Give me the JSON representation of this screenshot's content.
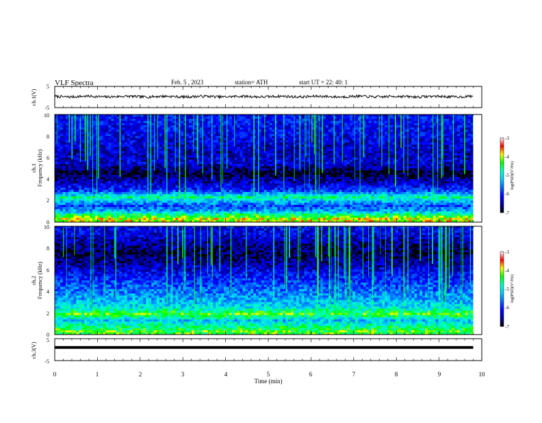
{
  "header": {
    "title": "VLF Spectra",
    "date": "Feb. 5 , 2023",
    "station": "station= ATH",
    "start": "start UT = 22: 40: 1"
  },
  "chart_data": [
    {
      "type": "line",
      "name": "ch1-waveform",
      "ylabel": "ch.1(V)",
      "yticks": [
        "5",
        "-5"
      ],
      "ylim": [
        -5,
        5
      ],
      "xlim": [
        0,
        10
      ],
      "approx_level": 0.2,
      "noise_amplitude": 0.6,
      "data_extent_min": 9.8
    },
    {
      "type": "heatmap",
      "name": "ch1-spectrogram",
      "ylabel": "Frequency (kHz)",
      "channel_label": "ch.1",
      "yticks": [
        "0",
        "2",
        "4",
        "6",
        "8",
        "10"
      ],
      "ylim": [
        0,
        10
      ],
      "xlim": [
        0,
        10
      ],
      "colorbar": {
        "label": "log(PSD)(V²/Hz)",
        "ticks": [
          "-3",
          "-4",
          "-5",
          "-6",
          "-7"
        ],
        "range": [
          -7,
          -3
        ]
      },
      "bands": [
        {
          "f": 0.3,
          "level": -4.0
        },
        {
          "f": 0.7,
          "level": -4.6
        },
        {
          "f": 1.0,
          "level": -5.3
        },
        {
          "f": 1.5,
          "level": -5.8
        },
        {
          "f": 2.1,
          "level": -5.0
        },
        {
          "f": 2.3,
          "level": -4.7
        },
        {
          "f": 3.0,
          "level": -6.0
        },
        {
          "f": 3.6,
          "level": -6.3
        },
        {
          "f": 4.5,
          "level": -6.9
        },
        {
          "f": 5.5,
          "level": -6.3
        },
        {
          "f": 6.5,
          "level": -6.4
        },
        {
          "f": 8.0,
          "level": -6.2
        },
        {
          "f": 9.5,
          "level": -6.1
        }
      ]
    },
    {
      "type": "heatmap",
      "name": "ch2-spectrogram",
      "ylabel": "Frequency (kHz)",
      "channel_label": "ch.2",
      "yticks": [
        "0",
        "2",
        "4",
        "6",
        "8",
        "10"
      ],
      "ylim": [
        0,
        10
      ],
      "xlim": [
        0,
        10
      ],
      "colorbar": {
        "label": "log(PSD)(V²/Hz)",
        "ticks": [
          "-3",
          "-4",
          "-5",
          "-6",
          "-7"
        ],
        "range": [
          -7,
          -3
        ]
      },
      "bands": [
        {
          "f": 0.3,
          "level": -4.3
        },
        {
          "f": 0.8,
          "level": -4.7
        },
        {
          "f": 1.3,
          "level": -5.2
        },
        {
          "f": 1.9,
          "level": -4.3
        },
        {
          "f": 2.5,
          "level": -5.0
        },
        {
          "f": 3.2,
          "level": -5.3
        },
        {
          "f": 4.0,
          "level": -5.6
        },
        {
          "f": 5.0,
          "level": -5.9
        },
        {
          "f": 6.0,
          "level": -6.3
        },
        {
          "f": 7.5,
          "level": -6.8
        },
        {
          "f": 9.5,
          "level": -6.2
        }
      ]
    },
    {
      "type": "line",
      "name": "ch3-waveform",
      "ylabel": "ch.3(V)",
      "yticks": [
        "5",
        "-5"
      ],
      "ylim": [
        -5,
        5
      ],
      "xlim": [
        0,
        10
      ],
      "approx_level": 1.0,
      "data_extent_min": 9.8
    }
  ],
  "xaxis": {
    "label": "Time (min)",
    "ticks": [
      "0",
      "1",
      "2",
      "3",
      "4",
      "5",
      "6",
      "7",
      "8",
      "9",
      "10"
    ]
  },
  "colors": {
    "colormap": [
      "#000000",
      "#0000a0",
      "#0000ff",
      "#0064ff",
      "#00c8ff",
      "#00ffc8",
      "#00ff00",
      "#ffff00",
      "#ff0000",
      "#ffffff"
    ]
  }
}
